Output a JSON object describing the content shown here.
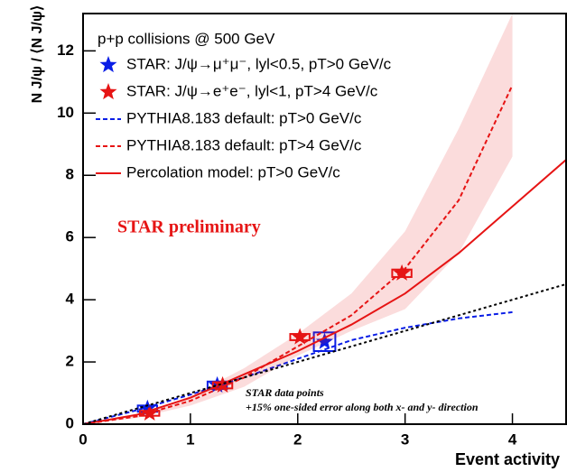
{
  "chart_data": {
    "type": "line",
    "y_label": "N J/ψ / ⟨N J/ψ⟩",
    "x_label": "Event activity",
    "legend_title": "p+p collisions @ 500 GeV",
    "annotations": [
      "STAR preliminary",
      "STAR data points",
      "+15% one-sided error along both x- and y- direction"
    ],
    "xlim": [
      0,
      4.5
    ],
    "ylim": [
      0,
      13.2
    ],
    "xticks": [
      0,
      1,
      2,
      3,
      4
    ],
    "yticks": [
      0,
      2,
      4,
      6,
      8,
      10,
      12
    ],
    "series": [
      {
        "name": "STAR: J/ψ→μ⁺μ⁻, lyl<0.5, pT>0 GeV/c",
        "color": "#0a1ee6",
        "style": "star",
        "x": [
          0.6,
          1.25,
          2.25
        ],
        "values": [
          0.5,
          1.25,
          2.65
        ],
        "xerr": [
          0.09,
          0.09,
          0.1
        ],
        "yerr": [
          0.1,
          0.12,
          0.3
        ]
      },
      {
        "name": "STAR: J/ψ→e⁺e⁻, lyl<1, pT>4 GeV/c",
        "color": "#e61414",
        "style": "star",
        "x": [
          0.62,
          1.3,
          2.02,
          2.97
        ],
        "values": [
          0.35,
          1.25,
          2.8,
          4.85
        ],
        "xerr": [
          0.09,
          0.09,
          0.09,
          0.09
        ],
        "yerr": [
          0.08,
          0.1,
          0.1,
          0.12
        ]
      },
      {
        "name": "PYTHIA8.183 default: pT>0 GeV/c",
        "color": "#0a1ee6",
        "style": "dashed",
        "x": [
          0,
          0.5,
          1,
          1.5,
          2,
          2.5,
          3,
          3.5,
          4
        ],
        "values": [
          0,
          0.45,
          0.95,
          1.5,
          2.1,
          2.7,
          3.1,
          3.4,
          3.6
        ]
      },
      {
        "name": "PYTHIA8.183 default: pT>4 GeV/c",
        "color": "#e61414",
        "style": "dashed",
        "x": [
          0,
          0.5,
          1,
          1.5,
          2,
          2.5,
          3,
          3.5,
          4
        ],
        "values": [
          0,
          0.25,
          0.75,
          1.5,
          2.5,
          3.5,
          5.0,
          7.2,
          10.9
        ],
        "band_low": [
          0,
          0.2,
          0.6,
          1.2,
          2.2,
          3.0,
          3.7,
          5.5,
          8.6
        ],
        "band_high": [
          0,
          0.3,
          0.9,
          1.8,
          2.9,
          4.2,
          6.2,
          9.5,
          13.2
        ]
      },
      {
        "name": "Percolation model: pT>0 GeV/c",
        "color": "#e61414",
        "style": "solid",
        "x": [
          0,
          0.5,
          1,
          1.5,
          2,
          2.5,
          3,
          3.5,
          4,
          4.5
        ],
        "values": [
          0,
          0.3,
          0.85,
          1.6,
          2.35,
          3.2,
          4.2,
          5.5,
          7.0,
          8.5
        ]
      },
      {
        "color": "#000000",
        "style": "dotted",
        "x": [
          0,
          4.5
        ],
        "values": [
          0,
          4.5
        ]
      }
    ]
  }
}
